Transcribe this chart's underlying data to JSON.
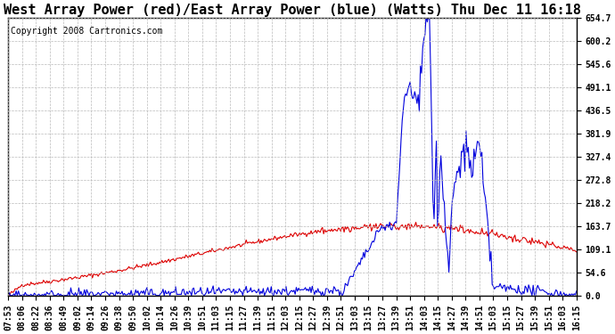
{
  "title": "West Array Power (red)/East Array Power (blue) (Watts) Thu Dec 11 16:18",
  "copyright": "Copyright 2008 Cartronics.com",
  "ylabel_right_ticks": [
    0.0,
    54.6,
    109.1,
    163.7,
    218.2,
    272.8,
    327.4,
    381.9,
    436.5,
    491.1,
    545.6,
    600.2,
    654.7
  ],
  "ymax": 654.7,
  "ymin": 0.0,
  "background_color": "#ffffff",
  "plot_bg_color": "#ffffff",
  "grid_color": "#bbbbbb",
  "line_red_color": "#dd0000",
  "line_blue_color": "#0000dd",
  "title_fontsize": 11,
  "copyright_fontsize": 7,
  "tick_fontsize": 7,
  "x_labels": [
    "07:53",
    "08:06",
    "08:22",
    "08:36",
    "08:49",
    "09:02",
    "09:14",
    "09:26",
    "09:38",
    "09:50",
    "10:02",
    "10:14",
    "10:26",
    "10:39",
    "10:51",
    "11:03",
    "11:15",
    "11:27",
    "11:39",
    "11:51",
    "12:03",
    "12:15",
    "12:27",
    "12:39",
    "12:51",
    "13:03",
    "13:15",
    "13:27",
    "13:39",
    "13:51",
    "14:03",
    "14:15",
    "14:27",
    "14:39",
    "14:51",
    "15:03",
    "15:15",
    "15:27",
    "15:39",
    "15:51",
    "16:03",
    "16:15"
  ]
}
